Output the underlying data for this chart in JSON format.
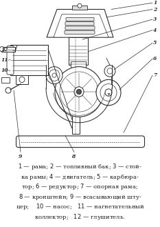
{
  "bg_color": "#ffffff",
  "text_color": "#1a1a1a",
  "line_color": "#2a2a2a",
  "fig_width": 2.33,
  "fig_height": 3.29,
  "dpi": 100,
  "caption_text": "1 — рама; 2 — топливный бак; 3 — стой-\nка рамы; 4 — двигатель; 5 — карбюра-\nтор; 6 — редуктор; 7 — опорная рама;\n8 — кронштейн; 9 — всасывающий шту-\nцер; 10 — насос; 11 — нагнетательный\nколлектор; 12 — глушитель."
}
